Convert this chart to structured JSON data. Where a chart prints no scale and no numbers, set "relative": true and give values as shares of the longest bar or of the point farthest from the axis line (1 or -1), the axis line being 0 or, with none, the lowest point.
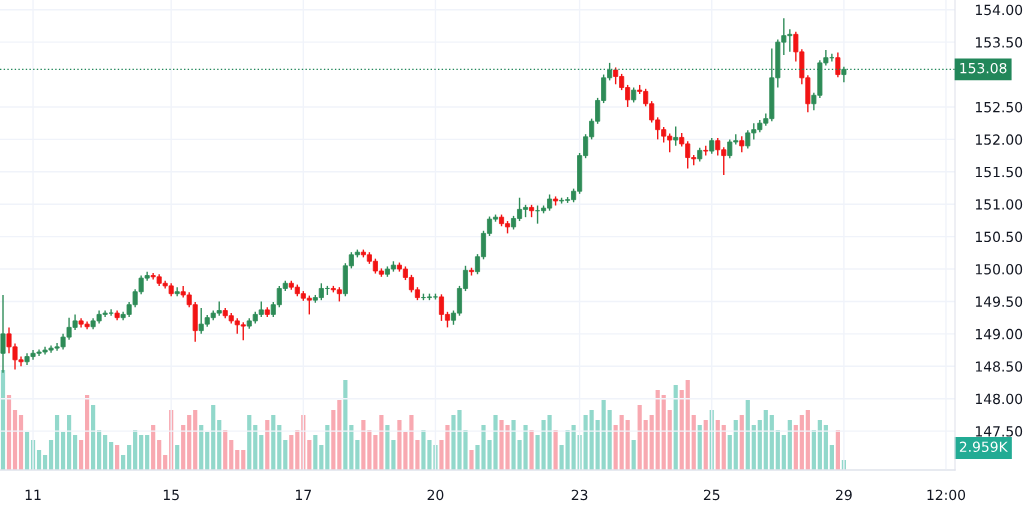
{
  "chart_data": [
    {
      "type": "candlestick",
      "grid": true,
      "categories": [
        null,
        null,
        null,
        null,
        null,
        "11",
        null,
        null,
        null,
        null,
        null,
        null,
        null,
        null,
        null,
        null,
        null,
        null,
        null,
        null,
        null,
        null,
        null,
        null,
        null,
        null,
        null,
        null,
        "15",
        null,
        null,
        null,
        null,
        null,
        null,
        null,
        null,
        null,
        null,
        null,
        null,
        null,
        null,
        null,
        null,
        null,
        null,
        null,
        null,
        null,
        "17",
        null,
        null,
        null,
        null,
        null,
        null,
        null,
        null,
        null,
        null,
        null,
        null,
        null,
        null,
        null,
        null,
        null,
        null,
        null,
        null,
        null,
        "20",
        null,
        null,
        null,
        null,
        null,
        null,
        null,
        null,
        null,
        null,
        null,
        null,
        null,
        null,
        null,
        null,
        null,
        null,
        null,
        null,
        null,
        null,
        null,
        "23",
        null,
        null,
        null,
        null,
        null,
        null,
        null,
        null,
        null,
        null,
        null,
        null,
        null,
        null,
        null,
        null,
        null,
        null,
        null,
        null,
        null,
        "25",
        null,
        null,
        null,
        null,
        null,
        null,
        null,
        null,
        null,
        null,
        null,
        null,
        null,
        null,
        null,
        null,
        null,
        null,
        null,
        null,
        null,
        "29",
        null,
        null,
        null,
        null,
        null,
        null,
        null,
        null,
        null,
        null,
        null,
        null,
        null,
        null,
        null,
        null,
        "12:00"
      ],
      "ylim": [
        146.9,
        154.15
      ],
      "yticks": [
        {
          "value": 147.5,
          "label": "147.50"
        },
        {
          "value": 148,
          "label": "148.00"
        },
        {
          "value": 148.5,
          "label": "148.50"
        },
        {
          "value": 149,
          "label": "149.00"
        },
        {
          "value": 149.5,
          "label": "149.50"
        },
        {
          "value": 150,
          "label": "150.00"
        },
        {
          "value": 150.5,
          "label": "150.50"
        },
        {
          "value": 151,
          "label": "151.00"
        },
        {
          "value": 151.5,
          "label": "151.50"
        },
        {
          "value": 152,
          "label": "152.00"
        },
        {
          "value": 152.5,
          "label": "152.50"
        },
        {
          "value": 153.5,
          "label": "153.50"
        },
        {
          "value": 154,
          "label": "154.00"
        }
      ],
      "ref_lines": [
        {
          "axis": "y",
          "value": 153.08,
          "label": "153.08",
          "color": "#22875a",
          "line_style": "dotted"
        }
      ],
      "ohlc": [
        [
          148.7,
          149.6,
          148.4,
          149.0
        ],
        [
          149.0,
          149.1,
          148.7,
          148.8
        ],
        [
          148.8,
          148.85,
          148.45,
          148.6
        ],
        [
          148.6,
          148.65,
          148.5,
          148.57
        ],
        [
          148.57,
          148.7,
          148.52,
          148.65
        ],
        [
          148.65,
          148.75,
          148.6,
          148.7
        ],
        [
          148.7,
          148.76,
          148.66,
          148.72
        ],
        [
          148.72,
          148.8,
          148.68,
          148.75
        ],
        [
          148.75,
          148.82,
          148.71,
          148.78
        ],
        [
          148.78,
          148.86,
          148.74,
          148.8
        ],
        [
          148.8,
          149.0,
          148.76,
          148.95
        ],
        [
          148.95,
          149.25,
          148.91,
          149.1
        ],
        [
          149.1,
          149.3,
          149.06,
          149.2
        ],
        [
          149.2,
          149.24,
          149.1,
          149.15
        ],
        [
          149.15,
          149.19,
          149.07,
          149.11
        ],
        [
          149.11,
          149.24,
          149.07,
          149.2
        ],
        [
          149.2,
          149.36,
          149.16,
          149.3
        ],
        [
          149.3,
          149.36,
          149.26,
          149.32
        ],
        [
          149.32,
          149.38,
          149.28,
          149.32
        ],
        [
          149.32,
          149.36,
          149.21,
          149.25
        ],
        [
          149.25,
          149.34,
          149.21,
          149.3
        ],
        [
          149.3,
          149.49,
          149.26,
          149.45
        ],
        [
          149.45,
          149.69,
          149.41,
          149.65
        ],
        [
          149.65,
          149.9,
          149.61,
          149.86
        ],
        [
          149.86,
          149.96,
          149.82,
          149.9
        ],
        [
          149.9,
          149.94,
          149.84,
          149.88
        ],
        [
          149.88,
          149.92,
          149.74,
          149.78
        ],
        [
          149.78,
          149.82,
          149.7,
          149.74
        ],
        [
          149.74,
          149.78,
          149.58,
          149.62
        ],
        [
          149.62,
          149.72,
          149.58,
          149.65
        ],
        [
          149.65,
          149.74,
          149.56,
          149.6
        ],
        [
          149.6,
          149.64,
          149.41,
          149.45
        ],
        [
          149.45,
          149.49,
          148.88,
          149.05
        ],
        [
          149.05,
          149.4,
          149.0,
          149.15
        ],
        [
          149.15,
          149.29,
          149.11,
          149.25
        ],
        [
          149.25,
          149.36,
          149.21,
          149.32
        ],
        [
          149.32,
          149.5,
          149.28,
          149.36
        ],
        [
          149.36,
          149.4,
          149.24,
          149.28
        ],
        [
          149.28,
          149.32,
          149.16,
          149.2
        ],
        [
          149.2,
          149.24,
          149.0,
          149.14
        ],
        [
          149.14,
          149.18,
          148.9,
          149.12
        ],
        [
          149.12,
          149.24,
          149.08,
          149.2
        ],
        [
          149.2,
          149.34,
          149.16,
          149.3
        ],
        [
          149.3,
          149.5,
          149.26,
          149.37
        ],
        [
          149.37,
          149.41,
          149.26,
          149.3
        ],
        [
          149.3,
          149.49,
          149.26,
          149.45
        ],
        [
          149.45,
          149.74,
          149.41,
          149.7
        ],
        [
          149.7,
          149.82,
          149.66,
          149.78
        ],
        [
          149.78,
          149.82,
          149.68,
          149.72
        ],
        [
          149.72,
          149.76,
          149.58,
          149.62
        ],
        [
          149.62,
          149.66,
          149.51,
          149.55
        ],
        [
          149.55,
          149.59,
          149.3,
          149.52
        ],
        [
          149.52,
          149.6,
          149.48,
          149.56
        ],
        [
          149.56,
          149.78,
          149.52,
          149.7
        ],
        [
          149.7,
          149.74,
          149.6,
          149.7
        ],
        [
          149.7,
          149.74,
          149.64,
          149.68
        ],
        [
          149.68,
          149.72,
          149.5,
          149.62
        ],
        [
          149.62,
          150.09,
          149.58,
          150.05
        ],
        [
          150.05,
          150.26,
          150.01,
          150.22
        ],
        [
          150.22,
          150.3,
          150.18,
          150.26
        ],
        [
          150.26,
          150.3,
          150.18,
          150.22
        ],
        [
          150.22,
          150.26,
          150.08,
          150.12
        ],
        [
          150.12,
          150.16,
          149.93,
          149.97
        ],
        [
          149.97,
          150.01,
          149.88,
          149.92
        ],
        [
          149.92,
          150.04,
          149.88,
          150.0
        ],
        [
          150.0,
          150.12,
          149.96,
          150.06
        ],
        [
          150.06,
          150.1,
          149.96,
          150.0
        ],
        [
          150.0,
          150.04,
          149.83,
          149.87
        ],
        [
          149.87,
          149.91,
          149.64,
          149.68
        ],
        [
          149.68,
          149.72,
          149.52,
          149.56
        ],
        [
          149.56,
          149.62,
          149.52,
          149.56
        ],
        [
          149.56,
          149.62,
          149.52,
          149.57
        ],
        [
          149.57,
          149.62,
          149.53,
          149.57
        ],
        [
          149.57,
          149.61,
          149.2,
          149.3
        ],
        [
          149.3,
          149.34,
          149.1,
          149.21
        ],
        [
          149.21,
          149.36,
          149.14,
          149.32
        ],
        [
          149.32,
          149.74,
          149.28,
          149.7
        ],
        [
          149.7,
          150.05,
          149.66,
          149.98
        ],
        [
          149.98,
          150.02,
          149.9,
          149.96
        ],
        [
          149.96,
          150.23,
          149.92,
          150.19
        ],
        [
          150.19,
          150.59,
          150.15,
          150.55
        ],
        [
          150.55,
          150.81,
          150.51,
          150.77
        ],
        [
          150.77,
          150.84,
          150.73,
          150.8
        ],
        [
          150.8,
          150.84,
          150.66,
          150.7
        ],
        [
          150.7,
          150.74,
          150.55,
          150.65
        ],
        [
          150.65,
          150.82,
          150.61,
          150.78
        ],
        [
          150.78,
          151.1,
          150.74,
          150.92
        ],
        [
          150.92,
          150.99,
          150.8,
          150.95
        ],
        [
          150.95,
          150.99,
          150.8,
          150.9
        ],
        [
          150.9,
          150.98,
          150.7,
          150.9
        ],
        [
          150.9,
          150.98,
          150.86,
          150.94
        ],
        [
          150.94,
          151.15,
          150.9,
          151.08
        ],
        [
          151.08,
          151.12,
          150.98,
          151.05
        ],
        [
          151.05,
          151.1,
          151.01,
          151.06
        ],
        [
          151.06,
          151.11,
          151.02,
          151.07
        ],
        [
          151.07,
          151.24,
          151.03,
          151.2
        ],
        [
          151.2,
          151.79,
          151.16,
          151.75
        ],
        [
          151.75,
          152.08,
          151.71,
          152.04
        ],
        [
          152.04,
          152.32,
          152.0,
          152.28
        ],
        [
          152.28,
          152.64,
          152.24,
          152.6
        ],
        [
          152.6,
          153.0,
          152.56,
          152.95
        ],
        [
          152.95,
          153.18,
          152.91,
          153.07
        ],
        [
          153.07,
          153.11,
          152.85,
          152.97
        ],
        [
          152.97,
          153.01,
          152.76,
          152.8
        ],
        [
          152.8,
          152.84,
          152.5,
          152.61
        ],
        [
          152.61,
          152.8,
          152.57,
          152.76
        ],
        [
          152.76,
          152.84,
          152.7,
          152.74
        ],
        [
          152.74,
          152.78,
          152.51,
          152.55
        ],
        [
          152.55,
          152.59,
          152.26,
          152.3
        ],
        [
          152.3,
          152.34,
          152.0,
          152.15
        ],
        [
          152.15,
          152.19,
          151.95,
          152.05
        ],
        [
          152.05,
          152.09,
          151.8,
          151.99
        ],
        [
          151.99,
          152.2,
          151.9,
          152.03
        ],
        [
          152.03,
          152.1,
          151.89,
          151.93
        ],
        [
          151.93,
          151.97,
          151.55,
          151.72
        ],
        [
          151.72,
          151.76,
          151.6,
          151.7
        ],
        [
          151.7,
          151.87,
          151.66,
          151.83
        ],
        [
          151.83,
          151.9,
          151.75,
          151.82
        ],
        [
          151.82,
          152.02,
          151.78,
          151.98
        ],
        [
          151.98,
          152.02,
          151.75,
          151.84
        ],
        [
          151.84,
          151.88,
          151.45,
          151.75
        ],
        [
          151.75,
          152.0,
          151.71,
          151.96
        ],
        [
          151.96,
          152.08,
          151.92,
          151.98
        ],
        [
          151.98,
          152.05,
          151.8,
          151.9
        ],
        [
          151.9,
          152.14,
          151.86,
          152.1
        ],
        [
          152.1,
          152.25,
          152.0,
          152.15
        ],
        [
          152.15,
          152.3,
          152.11,
          152.25
        ],
        [
          152.25,
          152.4,
          152.21,
          152.32
        ],
        [
          152.32,
          153.4,
          152.28,
          152.95
        ],
        [
          152.95,
          153.54,
          152.8,
          153.5
        ],
        [
          153.5,
          153.87,
          153.3,
          153.6
        ],
        [
          153.6,
          153.7,
          153.35,
          153.62
        ],
        [
          153.62,
          153.66,
          153.2,
          153.35
        ],
        [
          153.35,
          153.39,
          152.85,
          152.95
        ],
        [
          152.95,
          152.99,
          152.42,
          152.55
        ],
        [
          152.55,
          152.72,
          152.45,
          152.68
        ],
        [
          152.68,
          153.22,
          152.64,
          153.18
        ],
        [
          153.18,
          153.38,
          153.14,
          153.26
        ],
        [
          153.26,
          153.32,
          153.2,
          153.26
        ],
        [
          153.26,
          153.34,
          152.96,
          153.0
        ],
        [
          153.0,
          153.12,
          152.88,
          153.08
        ],
        null,
        null,
        null,
        null,
        null,
        null,
        null,
        null,
        null,
        null,
        null,
        null,
        null,
        null,
        null,
        null,
        null
      ],
      "colors": [
        "#2e8b57",
        "#f21414",
        "#f21414",
        "#f21414",
        "#2e8b57",
        "#2e8b57",
        "#2e8b57",
        "#2e8b57",
        "#2e8b57",
        "#2e8b57",
        "#2e8b57",
        "#2e8b57",
        "#2e8b57",
        "#f21414",
        "#f21414",
        "#2e8b57",
        "#2e8b57",
        "#2e8b57",
        "#2e8b57",
        "#f21414",
        "#2e8b57",
        "#2e8b57",
        "#2e8b57",
        "#2e8b57",
        "#2e8b57",
        "#f21414",
        "#f21414",
        "#f21414",
        "#f21414",
        "#2e8b57",
        "#f21414",
        "#f21414",
        "#f21414",
        "#2e8b57",
        "#2e8b57",
        "#2e8b57",
        "#2e8b57",
        "#f21414",
        "#f21414",
        "#f21414",
        "#f21414",
        "#2e8b57",
        "#2e8b57",
        "#2e8b57",
        "#f21414",
        "#2e8b57",
        "#2e8b57",
        "#2e8b57",
        "#f21414",
        "#f21414",
        "#f21414",
        "#f21414",
        "#2e8b57",
        "#2e8b57",
        "#2e8b57",
        "#f21414",
        "#f21414",
        "#2e8b57",
        "#2e8b57",
        "#2e8b57",
        "#f21414",
        "#f21414",
        "#f21414",
        "#f21414",
        "#2e8b57",
        "#2e8b57",
        "#f21414",
        "#f21414",
        "#f21414",
        "#f21414",
        "#2e8b57",
        "#2e8b57",
        "#2e8b57",
        "#f21414",
        "#f21414",
        "#2e8b57",
        "#2e8b57",
        "#2e8b57",
        "#f21414",
        "#2e8b57",
        "#2e8b57",
        "#2e8b57",
        "#2e8b57",
        "#f21414",
        "#f21414",
        "#2e8b57",
        "#2e8b57",
        "#2e8b57",
        "#f21414",
        "#2e8b57",
        "#2e8b57",
        "#2e8b57",
        "#f21414",
        "#2e8b57",
        "#2e8b57",
        "#2e8b57",
        "#2e8b57",
        "#2e8b57",
        "#2e8b57",
        "#2e8b57",
        "#2e8b57",
        "#2e8b57",
        "#f21414",
        "#f21414",
        "#f21414",
        "#2e8b57",
        "#f21414",
        "#f21414",
        "#f21414",
        "#f21414",
        "#f21414",
        "#f21414",
        "#2e8b57",
        "#f21414",
        "#f21414",
        "#f21414",
        "#2e8b57",
        "#f21414",
        "#2e8b57",
        "#f21414",
        "#f21414",
        "#2e8b57",
        "#2e8b57",
        "#f21414",
        "#2e8b57",
        "#2e8b57",
        "#2e8b57",
        "#2e8b57",
        "#2e8b57",
        "#2e8b57",
        "#2e8b57",
        "#2e8b57",
        "#f21414",
        "#f21414",
        "#f21414",
        "#2e8b57",
        "#2e8b57",
        "#2e8b57",
        "#2e8b57",
        "#f21414",
        "#2e8b57",
        null,
        null,
        null,
        null,
        null,
        null,
        null,
        null,
        null,
        null,
        null,
        null,
        null,
        null,
        null,
        null,
        null
      ]
    },
    {
      "type": "bar",
      "relative": true,
      "categories": [
        null,
        null,
        null,
        null,
        null,
        null,
        null,
        null,
        null,
        null,
        null,
        null,
        null,
        null,
        null,
        null,
        null,
        null,
        null,
        null,
        null,
        null,
        null,
        null,
        null,
        null,
        null,
        null,
        null,
        null,
        null,
        null,
        null,
        null,
        null,
        null,
        null,
        null,
        null,
        null,
        null,
        null,
        null,
        null,
        null,
        null,
        null,
        null,
        null,
        null,
        null,
        null,
        null,
        null,
        null,
        null,
        null,
        null,
        null,
        null,
        null,
        null,
        null,
        null,
        null,
        null,
        null,
        null,
        null,
        null,
        null,
        null,
        null,
        null,
        null,
        null,
        null,
        null,
        null,
        null,
        null,
        null,
        null,
        null,
        null,
        null,
        null,
        null,
        null,
        null,
        null,
        null,
        null,
        null,
        null,
        null,
        null,
        null,
        null,
        null,
        null,
        null,
        null,
        null,
        null,
        null,
        null,
        null,
        null,
        null,
        null,
        null,
        null,
        null,
        null,
        null,
        null,
        null,
        null,
        null,
        null,
        null,
        null,
        null,
        null,
        null,
        null,
        null,
        null,
        null,
        null,
        null,
        null,
        null,
        null,
        null,
        null,
        null,
        null,
        null,
        null,
        null,
        null,
        null,
        null,
        null,
        null,
        null,
        null,
        null,
        null,
        null,
        null,
        null,
        null,
        null,
        null,
        null
      ],
      "values": [
        1.0,
        0.75,
        0.6,
        0.55,
        0.38,
        0.3,
        0.2,
        0.15,
        0.3,
        0.55,
        0.38,
        0.55,
        0.35,
        0.3,
        0.75,
        0.65,
        0.4,
        0.35,
        0.28,
        0.25,
        0.15,
        0.25,
        0.4,
        0.35,
        0.35,
        0.45,
        0.3,
        0.15,
        0.6,
        0.25,
        0.45,
        0.55,
        0.6,
        0.45,
        0.38,
        0.65,
        0.5,
        0.4,
        0.3,
        0.2,
        0.2,
        0.55,
        0.45,
        0.35,
        0.5,
        0.55,
        0.45,
        0.3,
        0.35,
        0.4,
        0.55,
        0.3,
        0.35,
        0.25,
        0.45,
        0.6,
        0.7,
        0.9,
        0.45,
        0.3,
        0.5,
        0.4,
        0.35,
        0.55,
        0.45,
        0.3,
        0.5,
        0.38,
        0.55,
        0.3,
        0.4,
        0.3,
        0.25,
        0.3,
        0.45,
        0.55,
        0.6,
        0.4,
        0.2,
        0.25,
        0.45,
        0.3,
        0.55,
        0.5,
        0.45,
        0.5,
        0.3,
        0.45,
        0.4,
        0.35,
        0.5,
        0.55,
        0.4,
        0.25,
        0.4,
        0.45,
        0.35,
        0.55,
        0.6,
        0.5,
        0.7,
        0.6,
        0.45,
        0.55,
        0.5,
        0.3,
        0.65,
        0.5,
        0.55,
        0.8,
        0.75,
        0.6,
        0.85,
        0.8,
        0.9,
        0.55,
        0.45,
        0.5,
        0.6,
        0.5,
        0.45,
        0.35,
        0.5,
        0.55,
        0.7,
        0.45,
        0.5,
        0.6,
        0.55,
        0.4,
        0.35,
        0.5,
        0.45,
        0.55,
        0.6,
        0.4,
        0.5,
        0.45,
        0.25,
        0.4,
        0.1,
        null,
        null,
        null,
        null,
        null,
        null,
        null,
        null,
        null,
        null,
        null,
        null,
        null,
        null,
        null,
        null,
        null
      ],
      "annotations": [
        "2.959K"
      ],
      "colors": [
        "#92d8cb",
        "#f8a9b1",
        "#f8a9b1",
        "#f8a9b1",
        "#92d8cb",
        "#92d8cb",
        "#92d8cb",
        "#92d8cb",
        "#92d8cb",
        "#92d8cb",
        "#92d8cb",
        "#92d8cb",
        "#92d8cb",
        "#f8a9b1",
        "#f8a9b1",
        "#92d8cb",
        "#92d8cb",
        "#92d8cb",
        "#92d8cb",
        "#f8a9b1",
        "#92d8cb",
        "#92d8cb",
        "#92d8cb",
        "#92d8cb",
        "#92d8cb",
        "#f8a9b1",
        "#f8a9b1",
        "#f8a9b1",
        "#f8a9b1",
        "#92d8cb",
        "#f8a9b1",
        "#f8a9b1",
        "#f8a9b1",
        "#92d8cb",
        "#92d8cb",
        "#92d8cb",
        "#92d8cb",
        "#f8a9b1",
        "#f8a9b1",
        "#f8a9b1",
        "#f8a9b1",
        "#92d8cb",
        "#92d8cb",
        "#92d8cb",
        "#f8a9b1",
        "#92d8cb",
        "#92d8cb",
        "#92d8cb",
        "#f8a9b1",
        "#f8a9b1",
        "#f8a9b1",
        "#f8a9b1",
        "#92d8cb",
        "#92d8cb",
        "#92d8cb",
        "#f8a9b1",
        "#f8a9b1",
        "#92d8cb",
        "#92d8cb",
        "#92d8cb",
        "#f8a9b1",
        "#f8a9b1",
        "#f8a9b1",
        "#f8a9b1",
        "#92d8cb",
        "#92d8cb",
        "#f8a9b1",
        "#f8a9b1",
        "#f8a9b1",
        "#f8a9b1",
        "#92d8cb",
        "#92d8cb",
        "#92d8cb",
        "#f8a9b1",
        "#f8a9b1",
        "#92d8cb",
        "#92d8cb",
        "#92d8cb",
        "#f8a9b1",
        "#92d8cb",
        "#92d8cb",
        "#92d8cb",
        "#92d8cb",
        "#f8a9b1",
        "#f8a9b1",
        "#92d8cb",
        "#92d8cb",
        "#92d8cb",
        "#f8a9b1",
        "#92d8cb",
        "#92d8cb",
        "#92d8cb",
        "#f8a9b1",
        "#92d8cb",
        "#92d8cb",
        "#92d8cb",
        "#92d8cb",
        "#92d8cb",
        "#92d8cb",
        "#92d8cb",
        "#92d8cb",
        "#92d8cb",
        "#f8a9b1",
        "#f8a9b1",
        "#f8a9b1",
        "#92d8cb",
        "#f8a9b1",
        "#f8a9b1",
        "#f8a9b1",
        "#f8a9b1",
        "#f8a9b1",
        "#f8a9b1",
        "#92d8cb",
        "#f8a9b1",
        "#f8a9b1",
        "#f8a9b1",
        "#92d8cb",
        "#f8a9b1",
        "#92d8cb",
        "#f8a9b1",
        "#f8a9b1",
        "#92d8cb",
        "#92d8cb",
        "#f8a9b1",
        "#92d8cb",
        "#92d8cb",
        "#92d8cb",
        "#92d8cb",
        "#92d8cb",
        "#92d8cb",
        "#92d8cb",
        "#92d8cb",
        "#f8a9b1",
        "#f8a9b1",
        "#f8a9b1",
        "#92d8cb",
        "#92d8cb",
        "#92d8cb",
        "#92d8cb",
        "#f8a9b1",
        "#92d8cb",
        null,
        null,
        null,
        null,
        null,
        null,
        null,
        null,
        null,
        null,
        null,
        null,
        null,
        null,
        null,
        null,
        null
      ]
    }
  ]
}
